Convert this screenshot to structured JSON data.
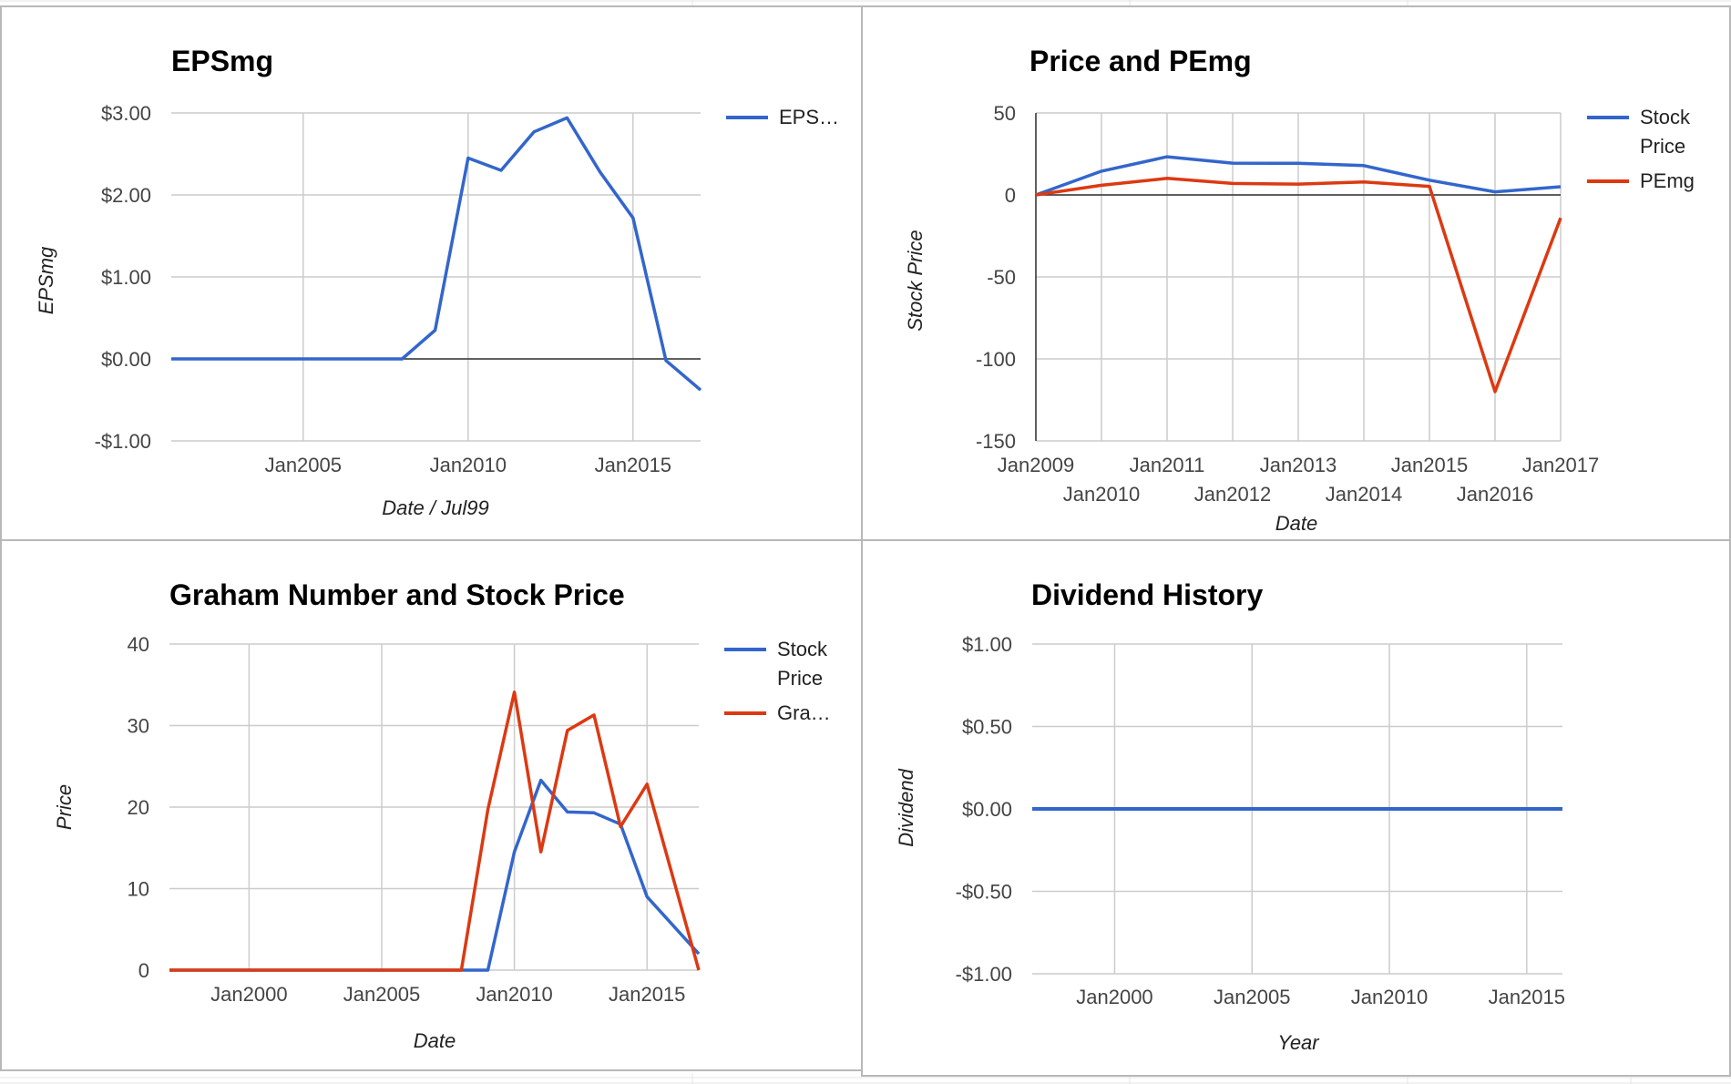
{
  "colors": {
    "blue": "#3366cc",
    "red": "#dc3912",
    "gridline": "#cccccc",
    "baseline": "#333333"
  },
  "chart_data": [
    {
      "id": "eps",
      "type": "line",
      "title": "EPSmg",
      "xlabel": "Date / Jul99",
      "ylabel": "EPSmg",
      "x_type": "year",
      "xlim": [
        2001.0,
        2017.05
      ],
      "ylim": [
        -1,
        3
      ],
      "y_ticks": [
        -1,
        0,
        1,
        2,
        3
      ],
      "y_tick_labels": [
        "-$1.00",
        "$0.00",
        "$1.00",
        "$2.00",
        "$3.00"
      ],
      "x_ticks": [
        2005,
        2010,
        2015
      ],
      "x_tick_labels": [
        "Jan2005",
        "Jan2010",
        "Jan2015"
      ],
      "grid": true,
      "legend": "right",
      "series": [
        {
          "name": "EPS…",
          "color": "#3366cc",
          "x": [
            2001.0,
            2002,
            2003,
            2004,
            2005,
            2006,
            2007,
            2008,
            2009,
            2010,
            2011,
            2012,
            2013,
            2014,
            2015,
            2016,
            2017.05
          ],
          "y": [
            0,
            0,
            0,
            0,
            0,
            0,
            0,
            0,
            0.35,
            2.45,
            2.3,
            2.77,
            2.94,
            2.28,
            1.72,
            -0.02,
            -0.38
          ]
        }
      ]
    },
    {
      "id": "price_pe",
      "type": "line",
      "title": "Price and PEmg",
      "xlabel": "Date",
      "ylabel": "Stock Price",
      "x_type": "year",
      "xlim": [
        2009,
        2017
      ],
      "ylim": [
        -150,
        50
      ],
      "y_ticks": [
        -150,
        -100,
        -50,
        0,
        50
      ],
      "y_tick_labels": [
        "-150",
        "-100",
        "-50",
        "0",
        "50"
      ],
      "x_ticks": [
        2009,
        2010,
        2011,
        2012,
        2013,
        2014,
        2015,
        2016,
        2017
      ],
      "x_tick_labels": [
        "Jan2009",
        "Jan2010",
        "Jan2011",
        "Jan2012",
        "Jan2013",
        "Jan2014",
        "Jan2015",
        "Jan2016",
        "Jan2017"
      ],
      "grid": true,
      "legend": "right",
      "series": [
        {
          "name_lines": [
            "Stock",
            "Price"
          ],
          "color": "#3366cc",
          "x": [
            2009,
            2010,
            2011,
            2012,
            2013,
            2014,
            2015,
            2016,
            2017
          ],
          "y": [
            0,
            14.5,
            23.3,
            19.4,
            19.3,
            17.9,
            9.0,
            1.9,
            5.0
          ]
        },
        {
          "name_lines": [
            "PEmg"
          ],
          "color": "#dc3912",
          "x": [
            2009,
            2010,
            2011,
            2012,
            2013,
            2014,
            2015,
            2016,
            2017
          ],
          "y": [
            0,
            5.9,
            10.1,
            7.0,
            6.6,
            7.9,
            5.2,
            -120,
            -14
          ]
        }
      ]
    },
    {
      "id": "graham",
      "type": "line",
      "title": "Graham Number and Stock Price",
      "xlabel": "Date",
      "ylabel": "Price",
      "x_type": "year",
      "xlim": [
        1997,
        2016.95
      ],
      "ylim": [
        0,
        40
      ],
      "y_ticks": [
        0,
        10,
        20,
        30,
        40
      ],
      "y_tick_labels": [
        "0",
        "10",
        "20",
        "30",
        "40"
      ],
      "x_ticks": [
        2000,
        2005,
        2010,
        2015
      ],
      "x_tick_labels": [
        "Jan2000",
        "Jan2005",
        "Jan2010",
        "Jan2015"
      ],
      "grid": true,
      "legend": "right",
      "series": [
        {
          "name_lines": [
            "Stock",
            "Price"
          ],
          "color": "#3366cc",
          "x": [
            1997,
            2009,
            2010,
            2011,
            2012,
            2013,
            2014,
            2015,
            2016.95
          ],
          "y": [
            0,
            0,
            14.5,
            23.3,
            19.4,
            19.3,
            17.9,
            9.0,
            2.0
          ]
        },
        {
          "name_lines": [
            "Gra…"
          ],
          "color": "#dc3912",
          "x": [
            1997,
            2008,
            2009,
            2010,
            2011,
            2012,
            2013,
            2014,
            2015,
            2016.95
          ],
          "y": [
            0,
            0,
            19.7,
            34.1,
            14.5,
            29.4,
            31.3,
            17.6,
            22.8,
            0
          ]
        }
      ]
    },
    {
      "id": "dividend",
      "type": "line",
      "title": "Dividend History",
      "xlabel": "Year",
      "ylabel": "Dividend",
      "x_type": "year",
      "xlim": [
        1997,
        2016.3
      ],
      "ylim": [
        -1,
        1
      ],
      "y_ticks": [
        -1,
        -0.5,
        0,
        0.5,
        1
      ],
      "y_tick_labels": [
        "-$1.00",
        "-$0.50",
        "$0.00",
        "$0.50",
        "$1.00"
      ],
      "x_ticks": [
        2000,
        2005,
        2010,
        2015
      ],
      "x_tick_labels": [
        "Jan2000",
        "Jan2005",
        "Jan2010",
        "Jan2015"
      ],
      "grid": true,
      "legend": "none",
      "series": [
        {
          "color": "#3366cc",
          "x": [
            1997,
            2016.3
          ],
          "y": [
            0,
            0
          ]
        }
      ]
    }
  ]
}
